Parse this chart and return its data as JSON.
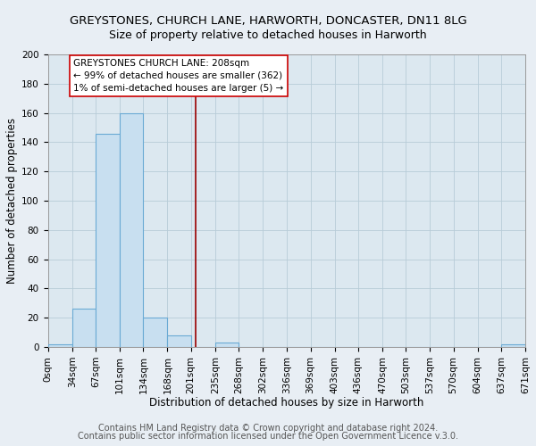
{
  "title": "GREYSTONES, CHURCH LANE, HARWORTH, DONCASTER, DN11 8LG",
  "subtitle": "Size of property relative to detached houses in Harworth",
  "xlabel": "Distribution of detached houses by size in Harworth",
  "ylabel": "Number of detached properties",
  "bin_edges": [
    0,
    34,
    67,
    101,
    134,
    168,
    201,
    235,
    268,
    302,
    336,
    369,
    403,
    436,
    470,
    503,
    537,
    570,
    604,
    637,
    671
  ],
  "bar_heights": [
    2,
    26,
    146,
    160,
    20,
    8,
    0,
    3,
    0,
    0,
    0,
    0,
    0,
    0,
    0,
    0,
    0,
    0,
    0,
    2
  ],
  "bar_color": "#c8dff0",
  "bar_edge_color": "#6aaad4",
  "property_line_x": 208,
  "property_line_color": "#990000",
  "annotation_title": "GREYSTONES CHURCH LANE: 208sqm",
  "annotation_line1": "← 99% of detached houses are smaller (362)",
  "annotation_line2": "1% of semi-detached houses are larger (5) →",
  "annotation_box_edge_color": "#cc0000",
  "annotation_box_face_color": "#ffffff",
  "xlim": [
    0,
    671
  ],
  "ylim": [
    0,
    200
  ],
  "yticks": [
    0,
    20,
    40,
    60,
    80,
    100,
    120,
    140,
    160,
    180,
    200
  ],
  "tick_labels": [
    "0sqm",
    "34sqm",
    "67sqm",
    "101sqm",
    "134sqm",
    "168sqm",
    "201sqm",
    "235sqm",
    "268sqm",
    "302sqm",
    "336sqm",
    "369sqm",
    "403sqm",
    "436sqm",
    "470sqm",
    "503sqm",
    "537sqm",
    "570sqm",
    "604sqm",
    "637sqm",
    "671sqm"
  ],
  "footer1": "Contains HM Land Registry data © Crown copyright and database right 2024.",
  "footer2": "Contains public sector information licensed under the Open Government Licence v.3.0.",
  "background_color": "#e8eef4",
  "plot_background_color": "#dce8f0",
  "grid_color": "#b8ccd8",
  "title_fontsize": 9.5,
  "subtitle_fontsize": 9,
  "axis_label_fontsize": 8.5,
  "tick_fontsize": 7.5,
  "footer_fontsize": 7,
  "ann_fontsize": 7.5
}
